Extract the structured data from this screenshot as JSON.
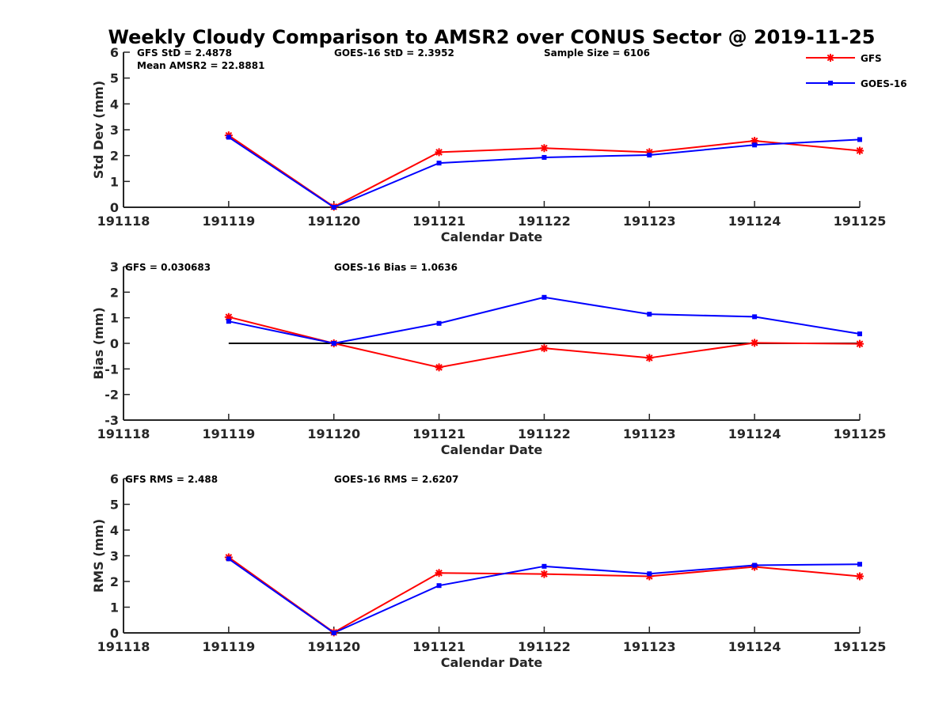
{
  "title": "Weekly Cloudy Comparison to AMSR2 over CONUS Sector @ 2019-11-25",
  "legend": [
    {
      "label": "GFS",
      "color": "#ff0000",
      "marker": "asterisk"
    },
    {
      "label": "GOES-16",
      "color": "#0000ff",
      "marker": "square"
    }
  ],
  "chart_data": [
    {
      "type": "line",
      "x": [
        "191118",
        "191119",
        "191120",
        "191121",
        "191122",
        "191123",
        "191124",
        "191125"
      ],
      "xlabel": "Calendar Date",
      "ylabel": "Std Dev (mm)",
      "ylim": [
        0,
        6
      ],
      "yticks": [
        "0",
        "1",
        "2",
        "3",
        "4",
        "5",
        "6"
      ],
      "annotations": [
        "GFS StD = 2.4878",
        "Mean AMSR2 = 22.8881",
        "GOES-16 StD = 2.3952",
        "Sample Size = 6106"
      ],
      "zero_line": false,
      "series": [
        {
          "name": "GFS",
          "color": "#ff0000",
          "x": [
            "191119",
            "191120",
            "191121",
            "191122",
            "191123",
            "191124",
            "191125"
          ],
          "values": [
            2.78,
            0.02,
            2.13,
            2.29,
            2.13,
            2.57,
            2.19
          ]
        },
        {
          "name": "GOES-16",
          "color": "#0000ff",
          "x": [
            "191119",
            "191120",
            "191121",
            "191122",
            "191123",
            "191124",
            "191125"
          ],
          "values": [
            2.71,
            0.0,
            1.71,
            1.93,
            2.02,
            2.41,
            2.62
          ]
        }
      ]
    },
    {
      "type": "line",
      "x": [
        "191118",
        "191119",
        "191120",
        "191121",
        "191122",
        "191123",
        "191124",
        "191125"
      ],
      "xlabel": "Calendar Date",
      "ylabel": "Bias (mm)",
      "ylim": [
        -3,
        3
      ],
      "yticks": [
        "-3",
        "-2",
        "-1",
        "0",
        "1",
        "2",
        "3"
      ],
      "annotations": [
        "GFS = 0.030683",
        "GOES-16 Bias  = 1.0636"
      ],
      "zero_line": true,
      "series": [
        {
          "name": "GFS",
          "color": "#ff0000",
          "x": [
            "191119",
            "191120",
            "191121",
            "191122",
            "191123",
            "191124",
            "191125"
          ],
          "values": [
            1.03,
            0.0,
            -0.94,
            -0.19,
            -0.57,
            0.02,
            -0.02
          ]
        },
        {
          "name": "GOES-16",
          "color": "#0000ff",
          "x": [
            "191119",
            "191120",
            "191121",
            "191122",
            "191123",
            "191124",
            "191125"
          ],
          "values": [
            0.86,
            0.0,
            0.78,
            1.8,
            1.14,
            1.04,
            0.37
          ]
        }
      ]
    },
    {
      "type": "line",
      "x": [
        "191118",
        "191119",
        "191120",
        "191121",
        "191122",
        "191123",
        "191124",
        "191125"
      ],
      "xlabel": "Calendar Date",
      "ylabel": "RMS (mm)",
      "ylim": [
        0,
        6
      ],
      "yticks": [
        "0",
        "1",
        "2",
        "3",
        "4",
        "5",
        "6"
      ],
      "annotations": [
        "GFS RMS = 2.488",
        "GOES-16 RMS = 2.6207"
      ],
      "zero_line": false,
      "series": [
        {
          "name": "GFS",
          "color": "#ff0000",
          "x": [
            "191119",
            "191120",
            "191121",
            "191122",
            "191123",
            "191124",
            "191125"
          ],
          "values": [
            2.94,
            0.02,
            2.33,
            2.29,
            2.2,
            2.57,
            2.2
          ]
        },
        {
          "name": "GOES-16",
          "color": "#0000ff",
          "x": [
            "191119",
            "191120",
            "191121",
            "191122",
            "191123",
            "191124",
            "191125"
          ],
          "values": [
            2.88,
            0.0,
            1.84,
            2.59,
            2.3,
            2.63,
            2.67
          ]
        }
      ]
    }
  ]
}
